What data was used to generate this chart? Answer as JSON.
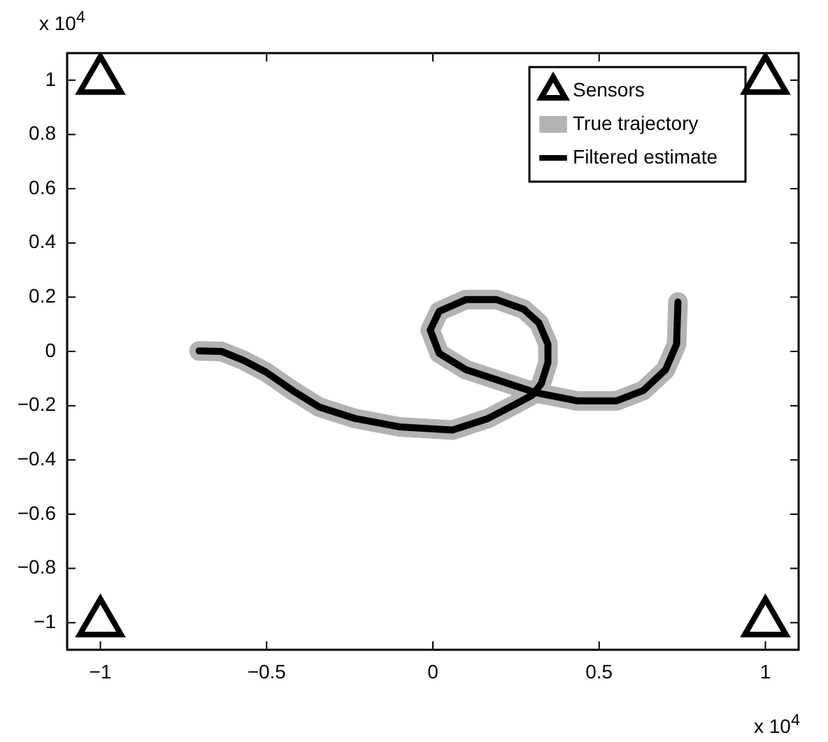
{
  "chart_data": {
    "type": "line",
    "legend": "top right",
    "grid": false,
    "xlim": [
      -1.1,
      1.1
    ],
    "ylim": [
      -1.1,
      1.1
    ],
    "xticks": [
      {
        "value": -1,
        "label": "−1"
      },
      {
        "value": -0.5,
        "label": "−0.5"
      },
      0,
      0.5,
      1
    ],
    "yticks": [
      {
        "value": -1,
        "label": "−1"
      },
      {
        "value": -0.8,
        "label": "−0.8"
      },
      {
        "value": -0.6,
        "label": "−0.6"
      },
      {
        "value": -0.4,
        "label": "−0.4"
      },
      {
        "value": -0.2,
        "label": "−0.2"
      },
      0,
      0.2,
      0.4,
      0.6,
      0.8,
      1
    ],
    "annotations": [
      "x 10$^{4}$",
      "x 10$^{4}$"
    ],
    "series": [
      {
        "name": "Sensors",
        "type": "scatter",
        "marker": "triangle",
        "color": "#000000",
        "x": [
          -1,
          1,
          -1,
          1
        ],
        "values": [
          1,
          1,
          -1,
          -1
        ]
      },
      {
        "name": "True trajectory",
        "marker": "none",
        "color": "#b3b3b3",
        "x": [
          -0.703,
          -0.636,
          -0.569,
          -0.502,
          -0.422,
          -0.342,
          -0.235,
          -0.101,
          0.059,
          0.166,
          0.246,
          0.299,
          0.326,
          0.346,
          0.346,
          0.319,
          0.273,
          0.192,
          0.099,
          0.019,
          -0.008,
          0.019,
          0.099,
          0.206,
          0.313,
          0.433,
          0.553,
          0.633,
          0.7,
          0.733,
          0.737
        ],
        "values": [
          0.002,
          0,
          -0.033,
          -0.076,
          -0.144,
          -0.205,
          -0.247,
          -0.278,
          -0.29,
          -0.247,
          -0.196,
          -0.161,
          -0.119,
          -0.041,
          0.027,
          0.105,
          0.156,
          0.191,
          0.191,
          0.148,
          0.079,
          -0.007,
          -0.067,
          -0.11,
          -0.153,
          -0.182,
          -0.182,
          -0.144,
          -0.067,
          0.027,
          0.182
        ]
      },
      {
        "name": "Filtered estimate",
        "marker": "none",
        "color": "#000000",
        "x": [
          -0.703,
          -0.636,
          -0.569,
          -0.502,
          -0.422,
          -0.342,
          -0.235,
          -0.101,
          0.059,
          0.166,
          0.246,
          0.299,
          0.326,
          0.346,
          0.346,
          0.319,
          0.273,
          0.192,
          0.099,
          0.019,
          -0.008,
          0.019,
          0.099,
          0.206,
          0.313,
          0.433,
          0.553,
          0.633,
          0.7,
          0.733,
          0.737
        ],
        "values": [
          0.002,
          0,
          -0.033,
          -0.076,
          -0.144,
          -0.205,
          -0.247,
          -0.278,
          -0.29,
          -0.247,
          -0.196,
          -0.161,
          -0.119,
          -0.041,
          0.027,
          0.105,
          0.156,
          0.191,
          0.191,
          0.148,
          0.079,
          -0.007,
          -0.067,
          -0.11,
          -0.153,
          -0.182,
          -0.182,
          -0.144,
          -0.067,
          0.027,
          0.182
        ]
      }
    ]
  }
}
